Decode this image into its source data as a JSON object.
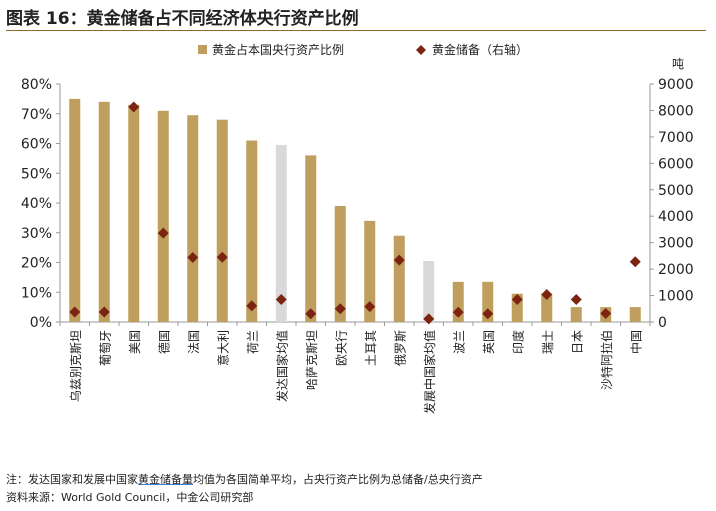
{
  "title": "图表 16：黄金储备占不同经济体央行资产比例",
  "note": {
    "prefix": "注：发达国家和发展中国家",
    "term": "黄金储备量",
    "suffix": "均值为各国简单平均，占央行资产比例为总储备/总央行资产"
  },
  "source": "资料来源：World Gold Council，中金公司研究部",
  "colors": {
    "bar": "#bf9e5e",
    "bar_average": "#d9d9d9",
    "marker": "#7b2411",
    "axis": "#999999"
  },
  "chart_data": {
    "type": "bar",
    "categories": [
      "乌兹别克斯坦",
      "葡萄牙",
      "美国",
      "德国",
      "法国",
      "意大利",
      "荷兰",
      "发达国家均值",
      "哈萨克斯坦",
      "欧央行",
      "土耳其",
      "俄罗斯",
      "发展中国家均值",
      "波兰",
      "英国",
      "印度",
      "瑞士",
      "日本",
      "沙特阿拉伯",
      "中国"
    ],
    "series": [
      {
        "name": "黄金占本国央行资产比例",
        "type": "bar",
        "axis": "left",
        "values": [
          75,
          74,
          73,
          71,
          69.5,
          68,
          61,
          59.5,
          56,
          39,
          34,
          29,
          20.5,
          13.5,
          13.5,
          9.5,
          9.5,
          5,
          5,
          5
        ]
      },
      {
        "name": "黄金储备（右轴）",
        "type": "scatter",
        "axis": "right",
        "values": [
          380,
          380,
          8130,
          3360,
          2440,
          2450,
          610,
          850,
          310,
          500,
          580,
          2340,
          120,
          370,
          310,
          850,
          1040,
          850,
          320,
          2280
        ]
      }
    ],
    "highlight_categories": [
      "发达国家均值",
      "发展中国家均值"
    ],
    "left_axis": {
      "ylim": [
        0,
        80
      ],
      "ticks": [
        "0%",
        "10%",
        "20%",
        "30%",
        "40%",
        "50%",
        "60%",
        "70%",
        "80%"
      ]
    },
    "right_axis": {
      "ylim": [
        0,
        9000
      ],
      "unit": "吨",
      "ticks": [
        "0",
        "1000",
        "2000",
        "3000",
        "4000",
        "5000",
        "6000",
        "7000",
        "8000",
        "9000"
      ]
    },
    "legend_position": "top-center",
    "grid": false
  }
}
